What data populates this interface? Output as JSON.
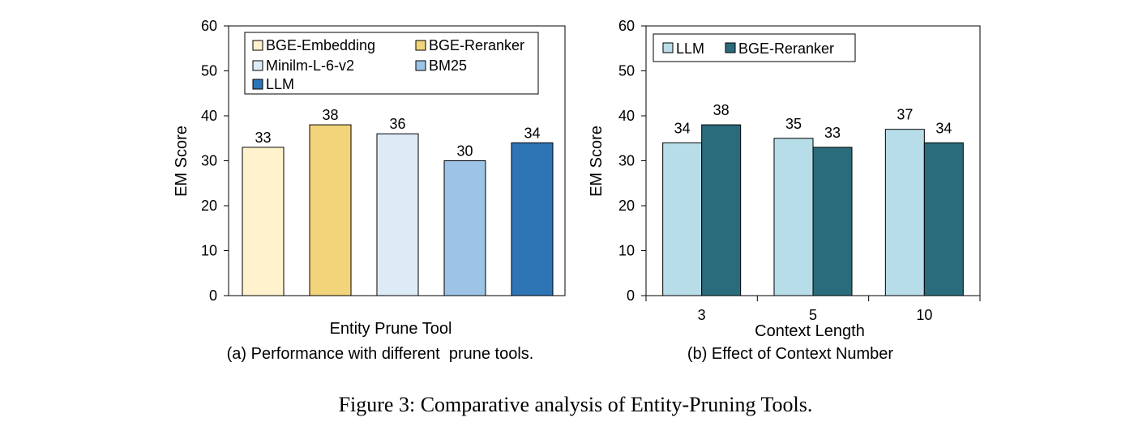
{
  "figure_caption": "Figure 3: Comparative analysis of Entity-Pruning Tools.",
  "chart_data": [
    {
      "type": "bar",
      "caption": "(a) Performance with different  prune tools.",
      "xlabel": "Entity Prune Tool",
      "ylabel": "EM Score",
      "ylim": [
        0,
        60
      ],
      "yticks": [
        0,
        10,
        20,
        30,
        40,
        50,
        60
      ],
      "grid": false,
      "legend": "top-left inside",
      "series": [
        {
          "name": "BGE-Embedding",
          "value": 33,
          "color": "#FFF2CC"
        },
        {
          "name": "BGE-Reranker",
          "value": 38,
          "color": "#F2D57A"
        },
        {
          "name": "Minilm-L-6-v2",
          "value": 36,
          "color": "#DDEBF7"
        },
        {
          "name": "BM25",
          "value": 30,
          "color": "#9DC3E6"
        },
        {
          "name": "LLM",
          "value": 34,
          "color": "#2E75B6"
        }
      ]
    },
    {
      "type": "bar",
      "caption": "(b) Effect of Context Number",
      "xlabel": "Context Length",
      "ylabel": "EM Score",
      "ylim": [
        0,
        60
      ],
      "yticks": [
        0,
        10,
        20,
        30,
        40,
        50,
        60
      ],
      "grid": false,
      "legend": "top-left inside",
      "categories": [
        "3",
        "5",
        "10"
      ],
      "series": [
        {
          "name": "LLM",
          "values": [
            34,
            35,
            37
          ],
          "color": "#B7DDE8"
        },
        {
          "name": "BGE-Reranker",
          "values": [
            38,
            33,
            34
          ],
          "color": "#2A6B7C"
        }
      ]
    }
  ]
}
